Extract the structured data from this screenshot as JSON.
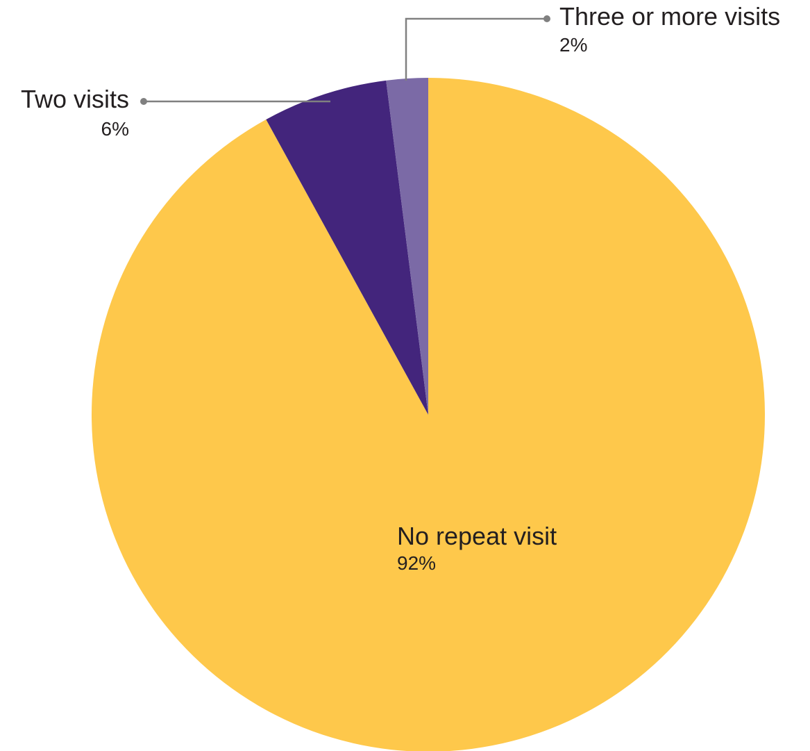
{
  "chart_data": {
    "type": "pie",
    "title": "",
    "slices": [
      {
        "label": "No repeat visit",
        "value": 92,
        "display": "92%",
        "color": "#FEC84B"
      },
      {
        "label": "Two visits",
        "value": 6,
        "display": "6%",
        "color": "#43257C"
      },
      {
        "label": "Three or more visits",
        "value": 2,
        "display": "2%",
        "color": "#7B6AA6"
      }
    ],
    "start": "12 o'clock",
    "direction": "clockwise",
    "legend": "none"
  }
}
